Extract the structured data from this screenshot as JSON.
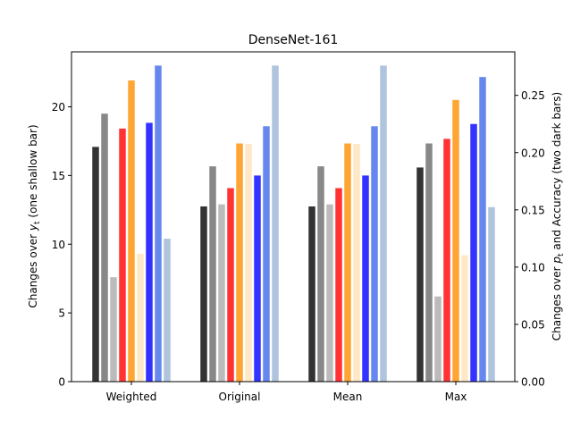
{
  "chart_data": {
    "type": "bar",
    "title": "DenseNet-161",
    "categories": [
      "Weighted",
      "Original",
      "Mean",
      "Max"
    ],
    "left_axis": {
      "label_prefix": "Changes over ",
      "label_sym": "y",
      "label_sub": "t",
      "label_suffix": " (one shallow bar)",
      "ylim": [
        0,
        24
      ],
      "ticks": [
        0,
        5,
        10,
        15,
        20
      ]
    },
    "right_axis": {
      "label_prefix": "Changes over ",
      "label_sym": "p",
      "label_sub": "t",
      "label_suffix": " and Accuracy (two dark bars)",
      "ylim": [
        0,
        0.288
      ],
      "ticks": [
        "0.00",
        "0.05",
        "0.10",
        "0.15",
        "0.20",
        "0.25"
      ]
    },
    "series": [
      {
        "color": "#333333",
        "axis": "right",
        "values": [
          0.205,
          0.153,
          0.153,
          0.187
        ]
      },
      {
        "color": "#888888",
        "axis": "right",
        "values": [
          0.234,
          0.188,
          0.188,
          0.208
        ]
      },
      {
        "color": "#bbbbbb",
        "axis": "left",
        "values": [
          7.6,
          12.9,
          12.9,
          6.2
        ]
      },
      {
        "color": "#ff3333",
        "axis": "right",
        "values": [
          0.221,
          0.169,
          0.169,
          0.212
        ]
      },
      {
        "color": "#ffa533",
        "axis": "right",
        "values": [
          0.263,
          0.208,
          0.208,
          0.246
        ]
      },
      {
        "color": "#ffe8c6",
        "axis": "left",
        "values": [
          9.3,
          17.3,
          17.3,
          9.2
        ]
      },
      {
        "color": "#3333ff",
        "axis": "right",
        "values": [
          0.226,
          0.18,
          0.18,
          0.225
        ]
      },
      {
        "color": "#6688ee",
        "axis": "right",
        "values": [
          0.276,
          0.223,
          0.223,
          0.266
        ]
      },
      {
        "color": "#b0c4de",
        "axis": "left",
        "values": [
          10.4,
          23.0,
          23.0,
          12.7
        ]
      }
    ],
    "grid": false,
    "legend": "none"
  }
}
